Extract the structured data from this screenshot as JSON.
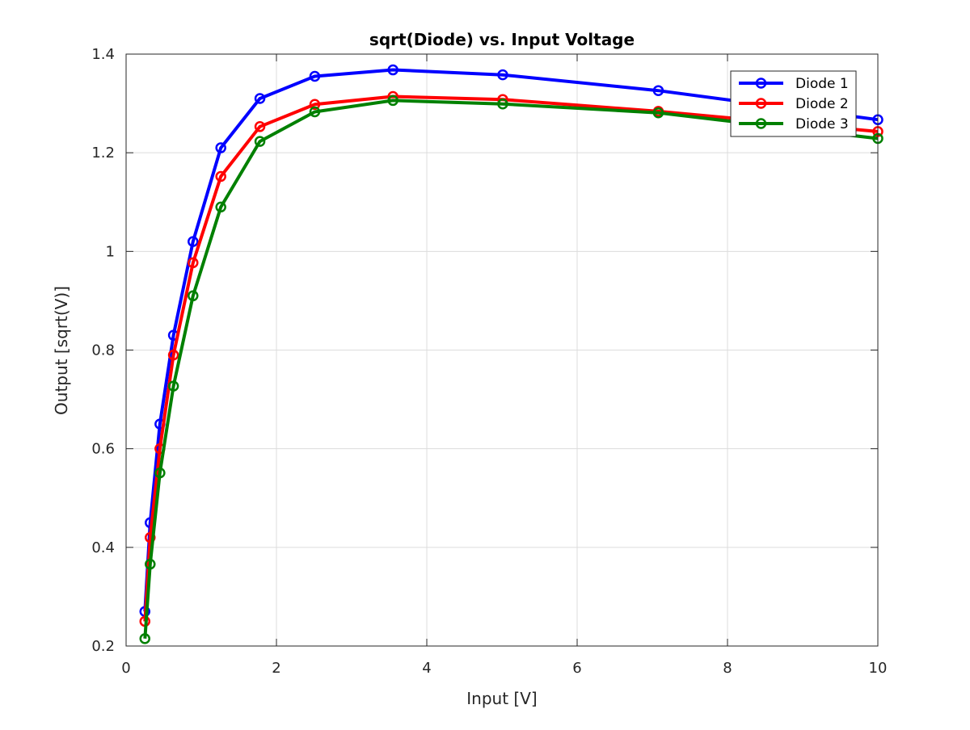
{
  "chart_data": {
    "type": "line",
    "title": "sqrt(Diode) vs. Input Voltage",
    "xlabel": "Input [V]",
    "ylabel": "Output [sqrt(V)]",
    "xlim": [
      0,
      10
    ],
    "ylim": [
      0.2,
      1.4
    ],
    "xticks": [
      0,
      2,
      4,
      6,
      8,
      10
    ],
    "xtick_labels": [
      "0",
      "2",
      "4",
      "6",
      "8",
      "10"
    ],
    "yticks": [
      0.2,
      0.4,
      0.6,
      0.8,
      1.0,
      1.2,
      1.4
    ],
    "ytick_labels": [
      "0.2",
      "0.4",
      "0.6",
      "0.8",
      "1",
      "1.2",
      "1.4"
    ],
    "grid": true,
    "legend_position": "top-right",
    "marker": "circle",
    "x": [
      0.25,
      0.32,
      0.45,
      0.63,
      0.89,
      1.26,
      1.78,
      2.51,
      3.55,
      5.01,
      7.08,
      10.0
    ],
    "series": [
      {
        "name": "Diode 1",
        "color": "#0000ff",
        "values": [
          0.27,
          0.45,
          0.65,
          0.83,
          1.02,
          1.21,
          1.31,
          1.355,
          1.368,
          1.358,
          1.326,
          1.267
        ]
      },
      {
        "name": "Diode 2",
        "color": "#ff0000",
        "values": [
          0.25,
          0.42,
          0.6,
          0.79,
          0.977,
          1.152,
          1.253,
          1.298,
          1.314,
          1.308,
          1.284,
          1.243
        ]
      },
      {
        "name": "Diode 3",
        "color": "#008000",
        "values": [
          0.215,
          0.366,
          0.551,
          0.727,
          0.91,
          1.09,
          1.223,
          1.283,
          1.306,
          1.299,
          1.281,
          1.229
        ]
      }
    ]
  }
}
